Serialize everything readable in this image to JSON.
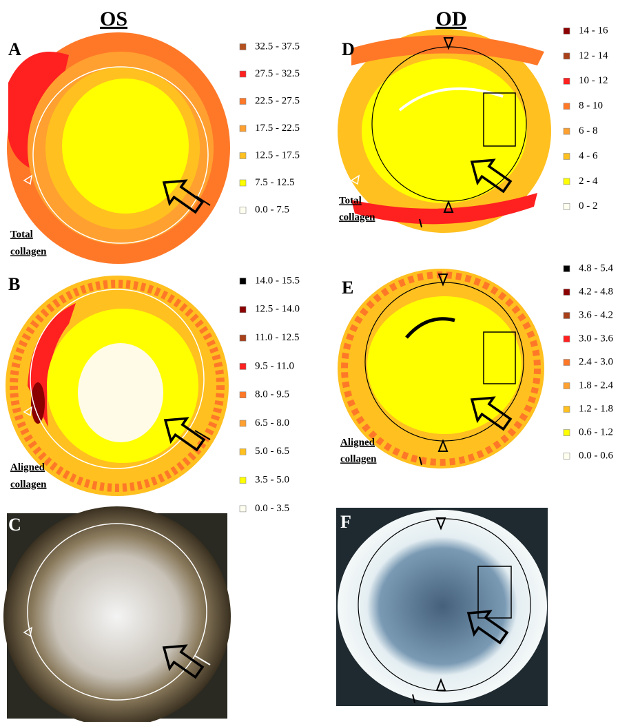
{
  "headings": {
    "left": "OS",
    "right": "OD"
  },
  "panels": [
    {
      "letter": "A",
      "caption": [
        "Total",
        "collagen"
      ]
    },
    {
      "letter": "B",
      "caption": [
        "Aligned",
        "collagen"
      ]
    },
    {
      "letter": "C"
    },
    {
      "letter": "D",
      "caption": [
        "Total",
        "collagen"
      ]
    },
    {
      "letter": "E",
      "caption": [
        "Aligned",
        "collagen"
      ]
    },
    {
      "letter": "F"
    }
  ],
  "legends": [
    {
      "items": [
        {
          "label": "32.5 - 37.5",
          "color": "#b4501e"
        },
        {
          "label": "27.5 - 32.5",
          "color": "#ff2020"
        },
        {
          "label": "22.5 - 27.5",
          "color": "#ff7828"
        },
        {
          "label": "17.5 - 22.5",
          "color": "#ffa030"
        },
        {
          "label": "12.5 - 17.5",
          "color": "#ffc020"
        },
        {
          "label": "7.5 - 12.5",
          "color": "#ffff00"
        },
        {
          "label": "0.0 - 7.5",
          "color": "#fffff0"
        }
      ]
    },
    {
      "items": [
        {
          "label": "14.0 - 15.5",
          "color": "#000000"
        },
        {
          "label": "12.5 - 14.0",
          "color": "#8b0000"
        },
        {
          "label": "11.0 - 12.5",
          "color": "#a8401a"
        },
        {
          "label": "9.5 - 11.0",
          "color": "#ff2020"
        },
        {
          "label": "8.0 - 9.5",
          "color": "#ff7828"
        },
        {
          "label": "6.5 - 8.0",
          "color": "#ffa030"
        },
        {
          "label": "5.0 - 6.5",
          "color": "#ffc020"
        },
        {
          "label": "3.5 - 5.0",
          "color": "#ffff00"
        },
        {
          "label": "0.0 - 3.5",
          "color": "#fffff0"
        }
      ]
    },
    {
      "items": [
        {
          "label": "14 - 16",
          "color": "#8b0000"
        },
        {
          "label": "12 - 14",
          "color": "#a8401a"
        },
        {
          "label": "10 - 12",
          "color": "#ff2020"
        },
        {
          "label": "8 - 10",
          "color": "#ff7828"
        },
        {
          "label": "6 - 8",
          "color": "#ffa030"
        },
        {
          "label": "4 - 6",
          "color": "#ffc020"
        },
        {
          "label": "2 - 4",
          "color": "#ffff00"
        },
        {
          "label": "0 - 2",
          "color": "#fffff0"
        }
      ]
    },
    {
      "items": [
        {
          "label": "4.8 - 5.4",
          "color": "#000000"
        },
        {
          "label": "4.2 - 4.8",
          "color": "#8b0000"
        },
        {
          "label": "3.6 - 4.2",
          "color": "#a8401a"
        },
        {
          "label": "3.0 - 3.6",
          "color": "#ff2020"
        },
        {
          "label": "2.4 - 3.0",
          "color": "#ff7828"
        },
        {
          "label": "1.8 - 2.4",
          "color": "#ffa030"
        },
        {
          "label": "1.2 - 1.8",
          "color": "#ffc020"
        },
        {
          "label": "0.6 - 1.2",
          "color": "#ffff00"
        },
        {
          "label": "0.0 - 0.6",
          "color": "#fffff0"
        }
      ]
    }
  ]
}
